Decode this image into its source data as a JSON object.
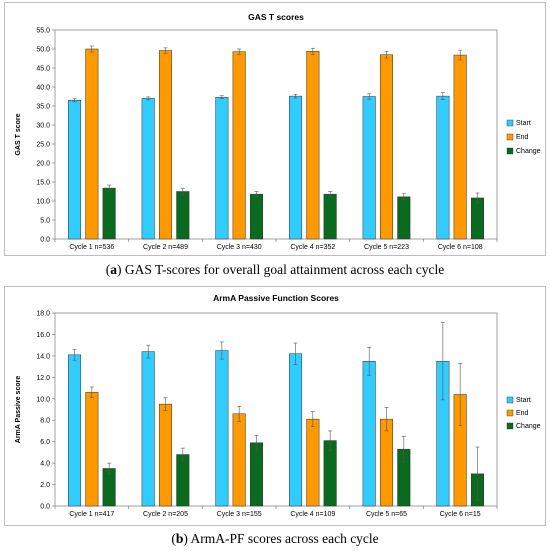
{
  "colors": {
    "start": "#33ccff",
    "end": "#ff9900",
    "change": "#0a6b1f"
  },
  "charts": [
    {
      "chart_data": {
        "type": "bar",
        "title": "GAS T scores",
        "ylabel": "GAS T score",
        "categories": [
          "Cycle 1 n=536",
          "Cycle 2 n=489",
          "Cycle 3 n=430",
          "Cycle 4 n=352",
          "Cycle 5 n=223",
          "Cycle 6 n=108"
        ],
        "ylim": [
          0,
          55
        ],
        "yticks": [
          "0.0",
          "5.0",
          "10.0",
          "15.0",
          "20.0",
          "25.0",
          "30.0",
          "35.0",
          "40.0",
          "45.0",
          "50.0",
          "55.0"
        ],
        "series": [
          {
            "name": "Start",
            "values": [
              36.5,
              37.0,
              37.3,
              37.6,
              37.5,
              37.6
            ],
            "errors": [
              0.4,
              0.4,
              0.4,
              0.5,
              0.7,
              0.9
            ]
          },
          {
            "name": "End",
            "values": [
              50.0,
              49.6,
              49.3,
              49.4,
              48.5,
              48.4
            ],
            "errors": [
              0.8,
              0.7,
              0.7,
              0.8,
              0.9,
              1.3
            ]
          },
          {
            "name": "Change",
            "values": [
              13.4,
              12.5,
              11.8,
              11.8,
              11.1,
              10.8
            ],
            "errors": [
              0.8,
              0.8,
              0.7,
              0.7,
              0.8,
              1.3
            ]
          }
        ],
        "legend": "right",
        "grid": false
      },
      "caption_letter": "a",
      "caption_text": "GAS T-scores for overall goal attainment across each cycle"
    },
    {
      "chart_data": {
        "type": "bar",
        "title": "ArmA Passive Function Scores",
        "ylabel": "ArmA Passive score",
        "categories": [
          "Cycle 1 n=417",
          "Cycle 2 n=205",
          "Cycle 3 n=155",
          "Cycle 4 n=109",
          "Cycle 5 n=65",
          "Cycle 6 n=15"
        ],
        "ylim": [
          0,
          18
        ],
        "yticks": [
          "0.0",
          "2.0",
          "4.0",
          "6.0",
          "8.0",
          "10.0",
          "12.0",
          "14.0",
          "16.0",
          "18.0"
        ],
        "series": [
          {
            "name": "Start",
            "values": [
              14.1,
              14.4,
              14.5,
              14.2,
              13.5,
              13.5
            ],
            "errors": [
              0.5,
              0.6,
              0.8,
              1.0,
              1.3,
              3.6
            ]
          },
          {
            "name": "End",
            "values": [
              10.6,
              9.5,
              8.6,
              8.1,
              8.1,
              10.4
            ],
            "errors": [
              0.5,
              0.6,
              0.7,
              0.7,
              1.1,
              2.9
            ]
          },
          {
            "name": "Change",
            "values": [
              3.5,
              4.8,
              5.9,
              6.1,
              5.3,
              3.0
            ],
            "errors": [
              0.5,
              0.6,
              0.7,
              0.9,
              1.2,
              2.5
            ]
          }
        ],
        "legend": "right",
        "grid": false
      },
      "caption_letter": "b",
      "caption_text": "ArmA-PF scores across each cycle"
    }
  ]
}
